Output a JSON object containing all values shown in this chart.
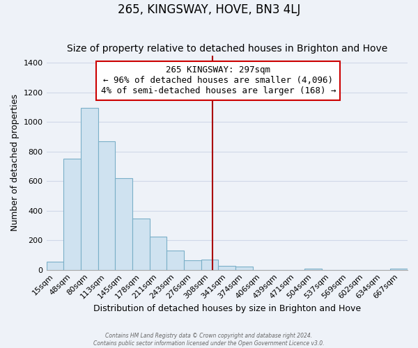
{
  "title": "265, KINGSWAY, HOVE, BN3 4LJ",
  "subtitle": "Size of property relative to detached houses in Brighton and Hove",
  "xlabel": "Distribution of detached houses by size in Brighton and Hove",
  "ylabel": "Number of detached properties",
  "bar_labels": [
    "15sqm",
    "48sqm",
    "80sqm",
    "113sqm",
    "145sqm",
    "178sqm",
    "211sqm",
    "243sqm",
    "276sqm",
    "308sqm",
    "341sqm",
    "374sqm",
    "406sqm",
    "439sqm",
    "471sqm",
    "504sqm",
    "537sqm",
    "569sqm",
    "602sqm",
    "634sqm",
    "667sqm"
  ],
  "bar_values": [
    55,
    750,
    1095,
    870,
    620,
    345,
    225,
    130,
    65,
    70,
    25,
    20,
    0,
    0,
    0,
    10,
    0,
    0,
    0,
    0,
    10
  ],
  "bar_color": "#cfe2f0",
  "bar_edge_color": "#7aafc8",
  "vline_color": "#aa0000",
  "annotation_text_line1": "265 KINGSWAY: 297sqm",
  "annotation_text_line2": "← 96% of detached houses are smaller (4,096)",
  "annotation_text_line3": "4% of semi-detached houses are larger (168) →",
  "ylim": [
    0,
    1450
  ],
  "yticks": [
    0,
    200,
    400,
    600,
    800,
    1000,
    1200,
    1400
  ],
  "background_color": "#eef2f8",
  "grid_color": "#d0d8e8",
  "footer_line1": "Contains HM Land Registry data © Crown copyright and database right 2024.",
  "footer_line2": "Contains public sector information licensed under the Open Government Licence v3.0.",
  "title_fontsize": 12,
  "subtitle_fontsize": 10,
  "xlabel_fontsize": 9,
  "ylabel_fontsize": 9,
  "tick_fontsize": 8,
  "annotation_fontsize": 9
}
